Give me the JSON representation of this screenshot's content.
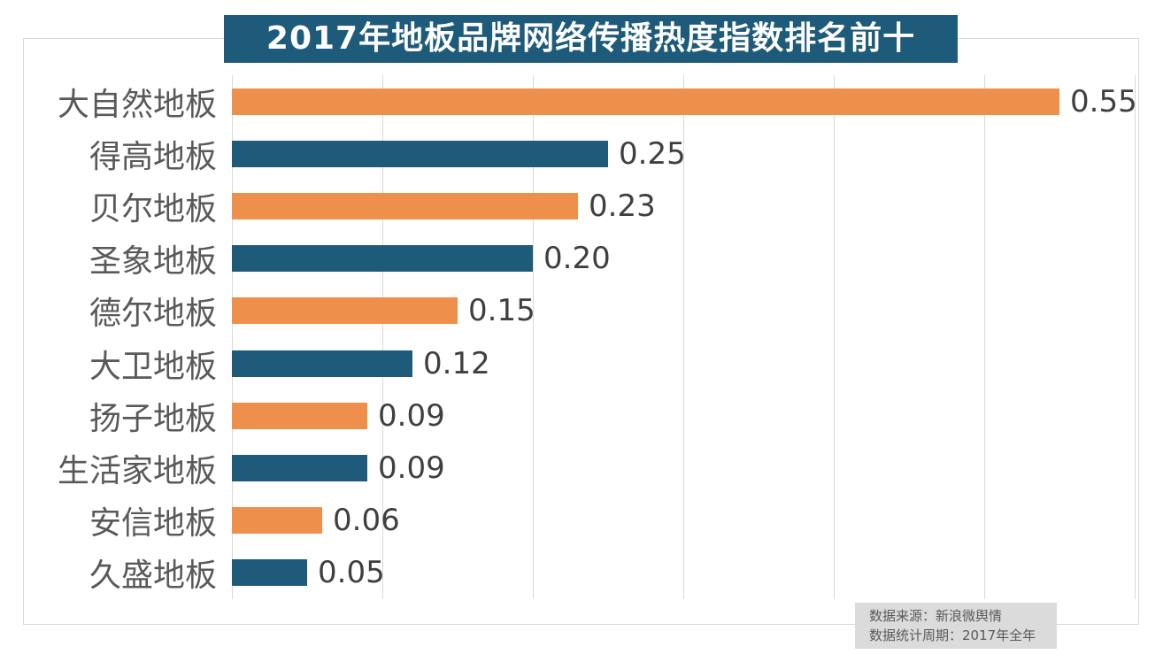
{
  "title": "2017年地板品牌网络传播热度指数排名前十",
  "chart_data": {
    "type": "bar",
    "orientation": "horizontal",
    "title": "2017年地板品牌网络传播热度指数排名前十",
    "categories": [
      "大自然地板",
      "得高地板",
      "贝尔地板",
      "圣象地板",
      "德尔地板",
      "大卫地板",
      "扬子地板",
      "生活家地板",
      "安信地板",
      "久盛地板"
    ],
    "values": [
      0.55,
      0.25,
      0.23,
      0.2,
      0.15,
      0.12,
      0.09,
      0.09,
      0.06,
      0.05
    ],
    "value_labels": [
      "0.55",
      "0.25",
      "0.23",
      "0.20",
      "0.15",
      "0.12",
      "0.09",
      "0.09",
      "0.06",
      "0.05"
    ],
    "xlim": [
      0,
      0.6
    ],
    "xtick_interval": 0.1,
    "grid": "vertical-only",
    "legend": "none",
    "bar_color_pattern": "alternating orange/blue starting with orange"
  },
  "footer": {
    "source_line": "数据来源：新浪微舆情",
    "period_line": "数据统计周期：2017年全年"
  },
  "colors": {
    "orange": "#EF8F4C",
    "blue": "#1E5B7B",
    "title_bg": "#1E5B7B",
    "title_text": "#FFFFFF",
    "grid": "#D9D9D9",
    "category_text": "#595959",
    "value_text": "#3F3F3F",
    "footer_bg": "#DBDBDB",
    "footer_text": "#595959"
  }
}
